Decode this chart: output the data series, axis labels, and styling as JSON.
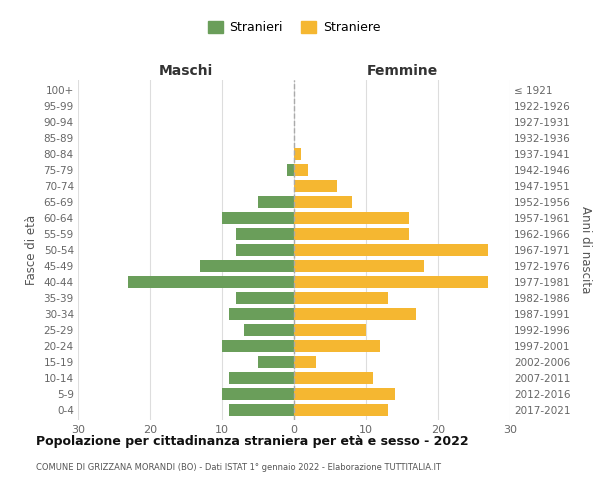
{
  "age_groups": [
    "0-4",
    "5-9",
    "10-14",
    "15-19",
    "20-24",
    "25-29",
    "30-34",
    "35-39",
    "40-44",
    "45-49",
    "50-54",
    "55-59",
    "60-64",
    "65-69",
    "70-74",
    "75-79",
    "80-84",
    "85-89",
    "90-94",
    "95-99",
    "100+"
  ],
  "birth_years": [
    "2017-2021",
    "2012-2016",
    "2007-2011",
    "2002-2006",
    "1997-2001",
    "1992-1996",
    "1987-1991",
    "1982-1986",
    "1977-1981",
    "1972-1976",
    "1967-1971",
    "1962-1966",
    "1957-1961",
    "1952-1956",
    "1947-1951",
    "1942-1946",
    "1937-1941",
    "1932-1936",
    "1927-1931",
    "1922-1926",
    "≤ 1921"
  ],
  "maschi": [
    9,
    10,
    9,
    5,
    10,
    7,
    9,
    8,
    23,
    13,
    8,
    8,
    10,
    5,
    0,
    1,
    0,
    0,
    0,
    0,
    0
  ],
  "femmine": [
    13,
    14,
    11,
    3,
    12,
    10,
    17,
    13,
    27,
    18,
    27,
    16,
    16,
    8,
    6,
    2,
    1,
    0,
    0,
    0,
    0
  ],
  "color_maschi": "#6a9e5a",
  "color_femmine": "#f5b731",
  "title_main": "Popolazione per cittadinanza straniera per età e sesso - 2022",
  "title_sub": "COMUNE DI GRIZZANA MORANDI (BO) - Dati ISTAT 1° gennaio 2022 - Elaborazione TUTTITALIA.IT",
  "label_maschi": "Stranieri",
  "label_femmine": "Straniere",
  "header_left": "Maschi",
  "header_right": "Femmine",
  "ylabel_left": "Fasce di età",
  "ylabel_right": "Anni di nascita",
  "xlim": 30,
  "background_color": "#ffffff"
}
